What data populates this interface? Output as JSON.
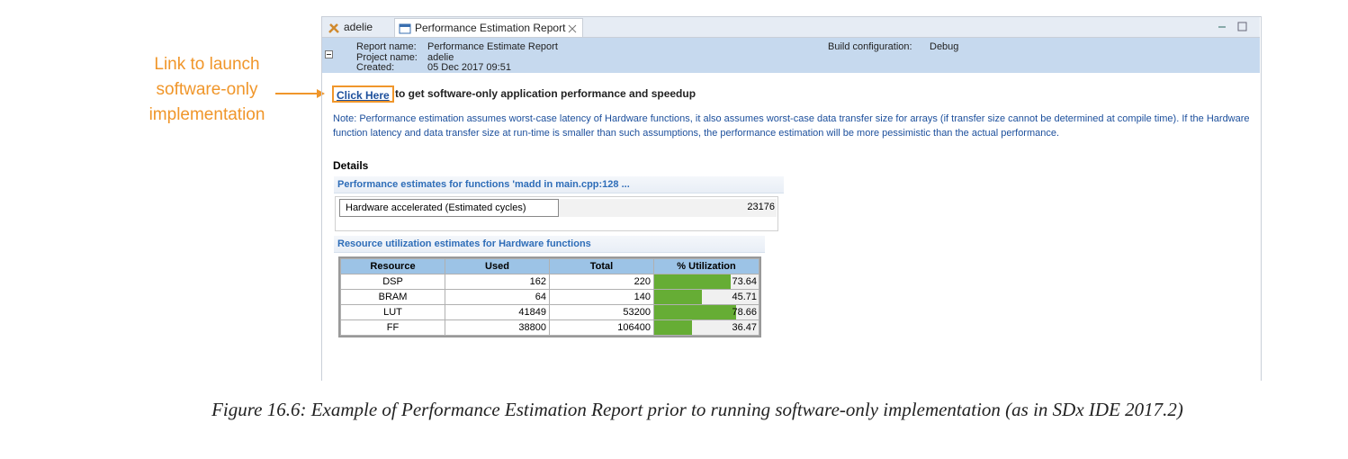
{
  "annotation": {
    "lines": [
      "Link to launch",
      "software-only",
      "implementation"
    ]
  },
  "tabs": [
    "adelie",
    "Performance Estimation Report"
  ],
  "header": {
    "report_name_label": "Report name:",
    "report_name": "Performance Estimate Report",
    "project_name_label": "Project name:",
    "project_name": "adelie",
    "created_label": "Created:",
    "created": "05 Dec 2017 09:51",
    "build_config_label": "Build configuration:",
    "build_config": "Debug"
  },
  "link": {
    "text": "Click Here",
    "rest": "to get software-only application performance and speedup"
  },
  "note": "Note: Performance estimation assumes worst-case latency of Hardware functions, it also assumes worst-case data transfer size for arrays (if transfer size cannot be determined at compile time). If the Hardware function latency and data transfer size at run-time is smaller than such assumptions, the performance estimation will be more pessimistic than the actual performance.",
  "details": "Details",
  "performance": {
    "title": "Performance estimates for functions 'madd in main.cpp:128 ...",
    "label": "Hardware accelerated (Estimated cycles)",
    "value": 23176
  },
  "resources": {
    "title": "Resource utilization estimates for Hardware functions",
    "columns": [
      "Resource",
      "Used",
      "Total",
      "% Utilization"
    ],
    "rows": [
      [
        "DSP",
        162,
        220,
        73.64
      ],
      [
        "BRAM",
        64,
        140,
        45.71
      ],
      [
        "LUT",
        41849,
        53200,
        78.66
      ],
      [
        "FF",
        38800,
        106400,
        36.47
      ]
    ]
  },
  "caption": "Figure 16.6: Example of Performance Estimation Report prior to running software-only implementation (as in SDx IDE 2017.2)"
}
